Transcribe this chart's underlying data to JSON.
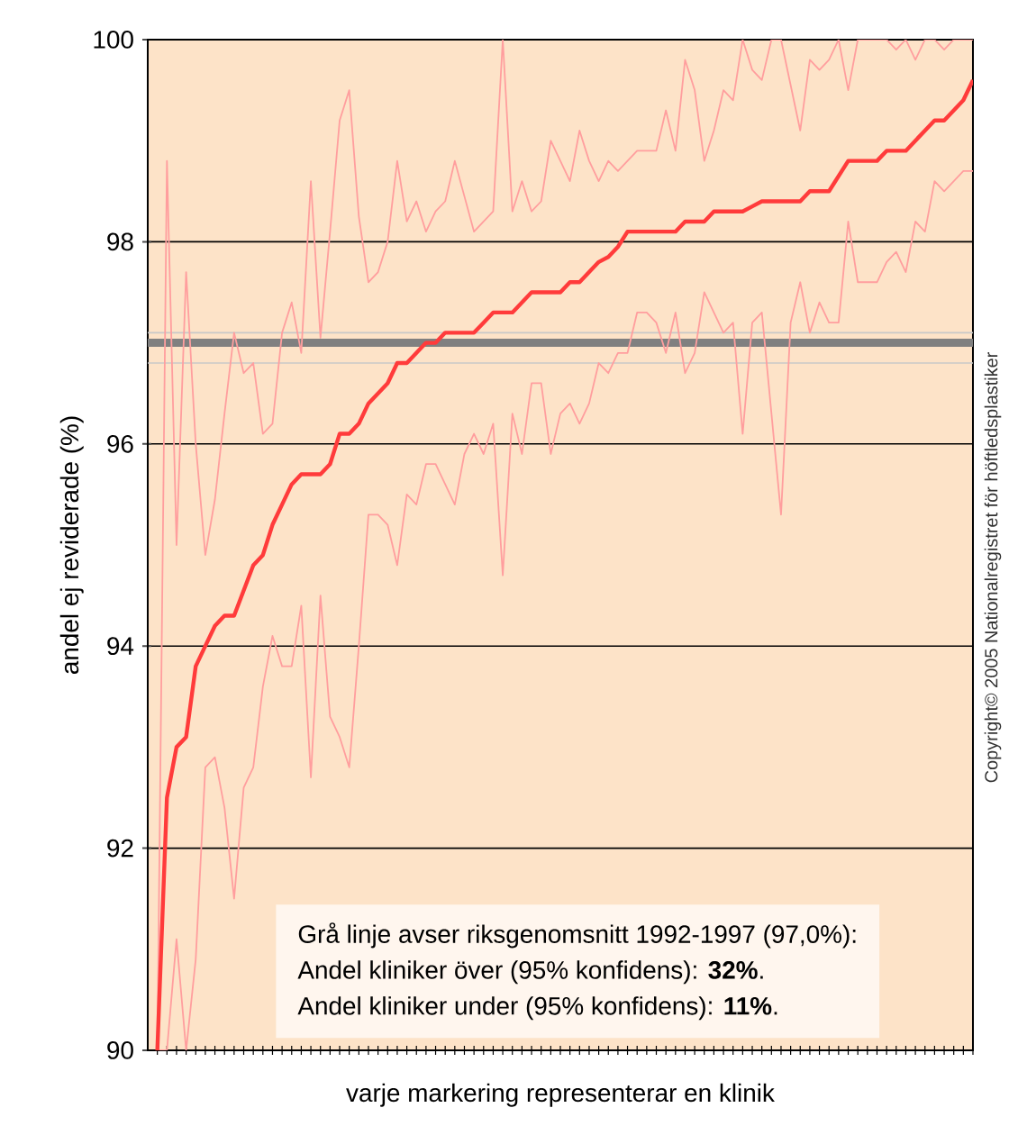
{
  "chart_data": {
    "type": "line",
    "ylabel": "andel ej reviderade (%)",
    "xlabel": "varje markering representerar en klinik",
    "categories": [
      null,
      null,
      null,
      null,
      null,
      null,
      null,
      null,
      null,
      null,
      null,
      null,
      null,
      null,
      null,
      null,
      null,
      null,
      null,
      null,
      null,
      null,
      null,
      null,
      null,
      null,
      null,
      null,
      null,
      null,
      null,
      null,
      null,
      null,
      null,
      null,
      null,
      null,
      null,
      null,
      null,
      null,
      null,
      null,
      null,
      null,
      null,
      null,
      null,
      null,
      null,
      null,
      null,
      null,
      null,
      null,
      null,
      null,
      null,
      null,
      null,
      null,
      null,
      null,
      null,
      null,
      null,
      null,
      null,
      null,
      null,
      null,
      null,
      null,
      null,
      null,
      null,
      null,
      null,
      null,
      null,
      null,
      null,
      null,
      null,
      null
    ],
    "series": [
      {
        "color": "#ff9e9e",
        "values": [
          90.0,
          98.8,
          95.0,
          97.7,
          96.0,
          94.9,
          95.45,
          96.3,
          97.1,
          96.7,
          96.8,
          96.1,
          96.2,
          97.1,
          97.4,
          96.9,
          98.6,
          97.05,
          98.1,
          99.2,
          99.5,
          98.25,
          97.6,
          97.7,
          98.0,
          98.8,
          98.2,
          98.4,
          98.1,
          98.3,
          98.4,
          98.8,
          98.45,
          98.1,
          98.2,
          98.3,
          100.0,
          98.3,
          98.6,
          98.3,
          98.4,
          99.0,
          98.8,
          98.6,
          99.1,
          98.8,
          98.6,
          98.8,
          98.7,
          98.8,
          98.9,
          98.9,
          98.9,
          99.3,
          98.9,
          99.8,
          99.5,
          98.8,
          99.1,
          99.5,
          99.4,
          100.0,
          99.7,
          99.6,
          100.0,
          100.0,
          99.55,
          99.1,
          99.8,
          99.7,
          99.8,
          100.0,
          99.5,
          100.0,
          100.0,
          100.0,
          100.0,
          99.9,
          100.0,
          99.8,
          100.0,
          100.0,
          99.9,
          100.0,
          100.0,
          100.0
        ]
      },
      {
        "color": "#ff9e9e",
        "values": [
          90.0,
          90.0,
          91.1,
          90.0,
          90.9,
          92.8,
          92.9,
          92.4,
          91.5,
          92.6,
          92.8,
          93.6,
          94.1,
          93.8,
          93.8,
          94.4,
          92.7,
          94.5,
          93.3,
          93.1,
          92.8,
          94.0,
          95.3,
          95.3,
          95.2,
          94.8,
          95.5,
          95.4,
          95.8,
          95.8,
          95.6,
          95.4,
          95.9,
          96.1,
          95.9,
          96.2,
          94.7,
          96.3,
          95.9,
          96.6,
          96.6,
          95.9,
          96.3,
          96.4,
          96.2,
          96.4,
          96.8,
          96.7,
          96.9,
          96.9,
          97.3,
          97.3,
          97.2,
          96.9,
          97.3,
          96.7,
          96.9,
          97.5,
          97.3,
          97.1,
          97.2,
          96.1,
          97.2,
          97.3,
          96.3,
          95.3,
          97.2,
          97.6,
          97.1,
          97.4,
          97.2,
          97.2,
          98.2,
          97.6,
          97.6,
          97.6,
          97.8,
          97.9,
          97.7,
          98.2,
          98.1,
          98.6,
          98.5,
          98.6,
          98.7,
          98.7
        ]
      },
      {
        "color": "#ff3b3b",
        "values": [
          90.0,
          92.5,
          93.0,
          93.1,
          93.8,
          94.0,
          94.2,
          94.3,
          94.3,
          94.55,
          94.8,
          94.9,
          95.2,
          95.4,
          95.6,
          95.7,
          95.7,
          95.7,
          95.8,
          96.1,
          96.1,
          96.2,
          96.4,
          96.5,
          96.6,
          96.8,
          96.8,
          96.9,
          97.0,
          97.0,
          97.1,
          97.1,
          97.1,
          97.1,
          97.2,
          97.3,
          97.3,
          97.3,
          97.4,
          97.5,
          97.5,
          97.5,
          97.5,
          97.6,
          97.6,
          97.7,
          97.8,
          97.85,
          97.95,
          98.1,
          98.1,
          98.1,
          98.1,
          98.1,
          98.1,
          98.2,
          98.2,
          98.2,
          98.3,
          98.3,
          98.3,
          98.3,
          98.35,
          98.4,
          98.4,
          98.4,
          98.4,
          98.4,
          98.5,
          98.5,
          98.5,
          98.65,
          98.8,
          98.8,
          98.8,
          98.8,
          98.9,
          98.9,
          98.9,
          99.0,
          99.1,
          99.2,
          99.2,
          99.3,
          99.4,
          99.6
        ]
      }
    ],
    "ylim": [
      90,
      100
    ],
    "yticks": [
      90,
      92,
      94,
      96,
      98,
      100
    ],
    "grid": "y",
    "tick_labels": "y",
    "ref_lines": [
      {
        "axis": "y",
        "value": 97.0,
        "color": "#808080"
      },
      {
        "axis": "y",
        "value": 97.1,
        "color": "#c8c8c8"
      },
      {
        "axis": "y",
        "value": 96.8,
        "color": "#c8c8c8"
      }
    ],
    "annotations": [
      "Grå linje avser riksgenomsnitt 1992-1997 (97,0%):",
      "Andel kliniker över   (95% konfidens): **32%**.",
      "Andel kliniker under (95% konfidens): **11%**.",
      "Copyright© 2005 Nationalregistret för höftledsplastiker"
    ]
  }
}
